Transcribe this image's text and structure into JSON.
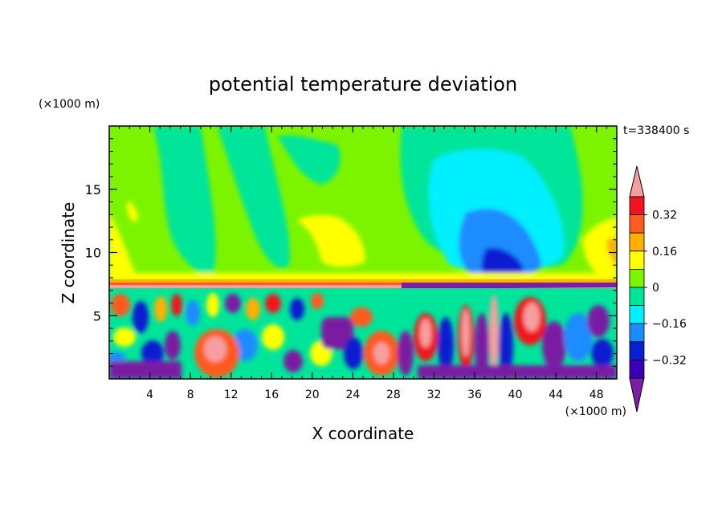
{
  "chart_data": {
    "type": "heatmap",
    "title": "potential temperature deviation",
    "xlabel": "X coordinate",
    "ylabel": "Z coordinate",
    "x_unit": "(×1000 m)",
    "y_unit": "(×1000 m)",
    "time_label": "t=338400 s",
    "xlim": [
      0,
      50
    ],
    "ylim": [
      0,
      20
    ],
    "x_ticks": [
      4,
      8,
      12,
      16,
      20,
      24,
      28,
      32,
      36,
      40,
      44,
      48
    ],
    "y_ticks": [
      5,
      10,
      15
    ],
    "colorbar": {
      "levels": [
        -0.4,
        -0.32,
        -0.24,
        -0.16,
        -0.08,
        0,
        0.08,
        0.16,
        0.24,
        0.32,
        0.4
      ],
      "tick_labels": [
        "0.32",
        "0.16",
        "0",
        "−0.16",
        "−0.32"
      ],
      "tick_values": [
        0.32,
        0.16,
        0,
        -0.16,
        -0.32
      ],
      "colors": [
        "#7a1fa2",
        "#3a00b8",
        "#0a1fd0",
        "#1a8cff",
        "#00f0ff",
        "#00e59a",
        "#7cf400",
        "#ffff00",
        "#ffb000",
        "#ff5a1f",
        "#f0141e",
        "#f5a0a0"
      ]
    }
  }
}
